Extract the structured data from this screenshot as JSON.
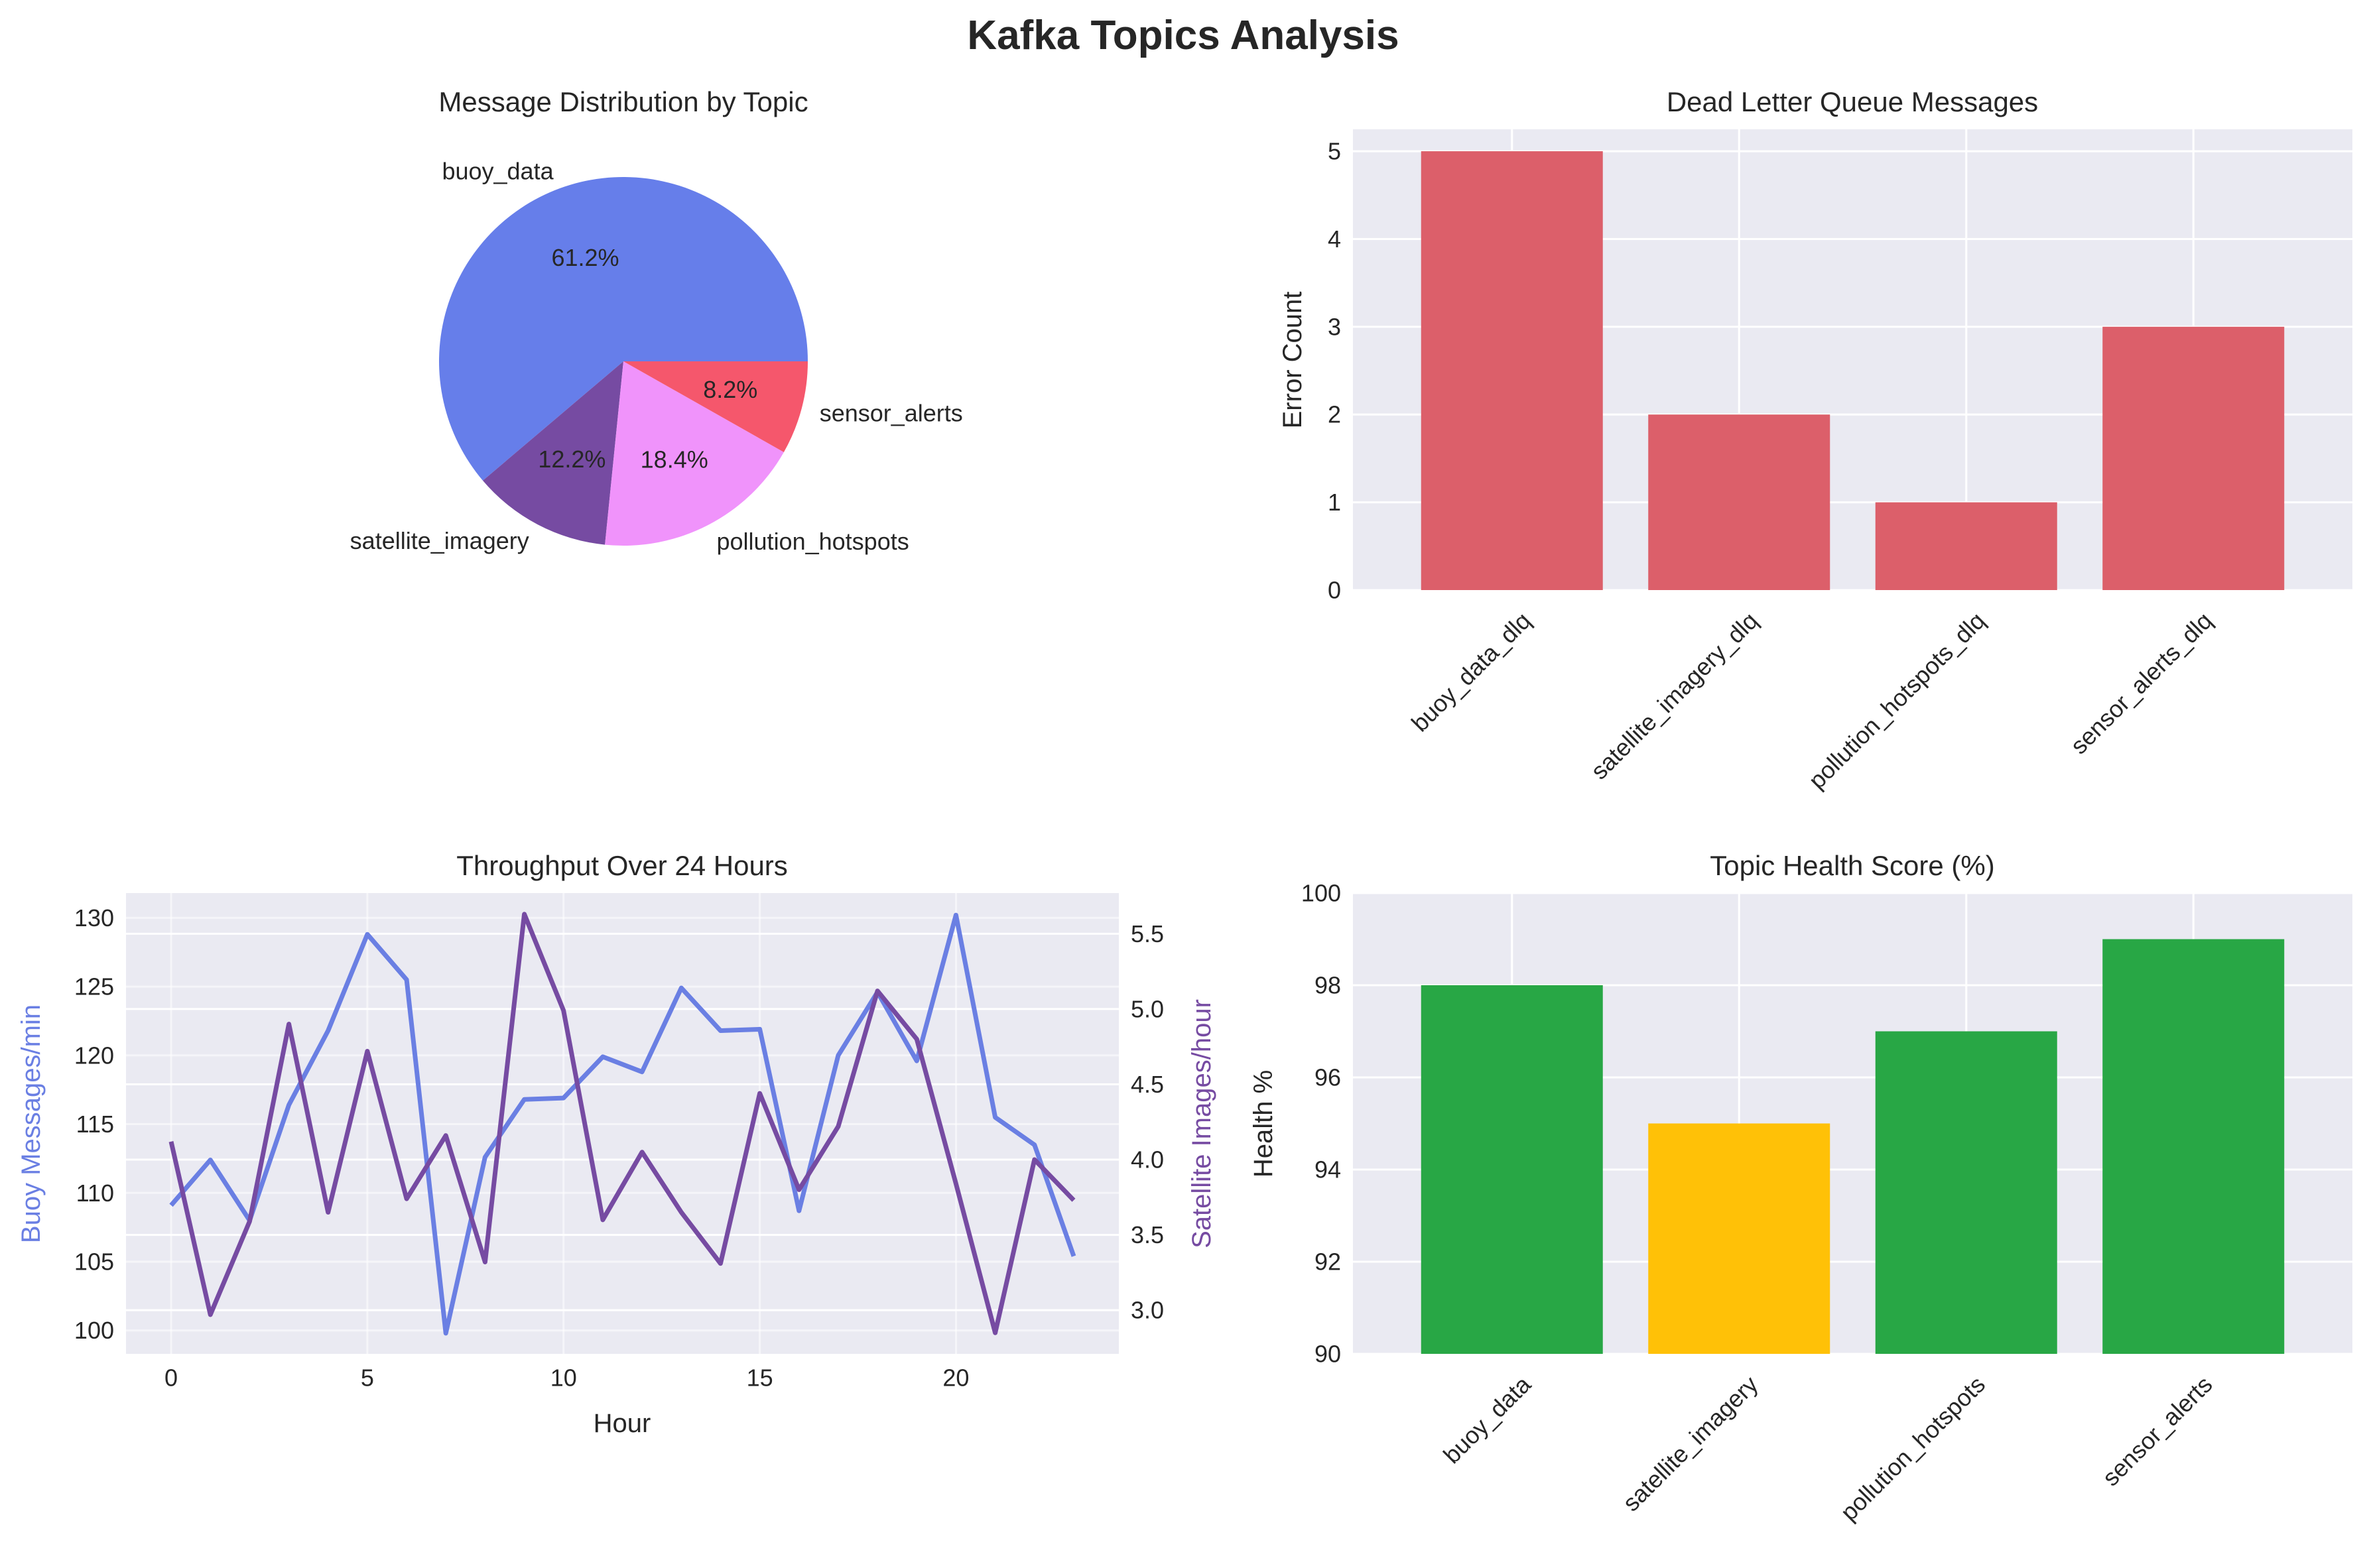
{
  "figure": {
    "title": "Kafka Topics Analysis"
  },
  "colors": {
    "buoy_line": "#6a7fe3",
    "satellite_line": "#764ba2",
    "dlq_bar": "#dc5f6a",
    "health_good": "#28a745",
    "health_warn": "#ffc107",
    "plot_bg": "#eaeaf2",
    "grid": "#ffffff"
  },
  "chart_data": [
    {
      "type": "pie",
      "title": "Message Distribution by Topic",
      "labels": [
        "buoy_data",
        "satellite_imagery",
        "pollution_hotspots",
        "sensor_alerts"
      ],
      "values": [
        61.2,
        12.2,
        18.4,
        8.2
      ],
      "pct_labels": [
        "61.2%",
        "12.2%",
        "18.4%",
        "8.2%"
      ],
      "colors": [
        "#667eea",
        "#764ba2",
        "#f093fb",
        "#f5576c"
      ],
      "start_angle": 0
    },
    {
      "type": "bar",
      "title": "Dead Letter Queue Messages",
      "categories": [
        "buoy_data_dlq",
        "satellite_imagery_dlq",
        "pollution_hotspots_dlq",
        "sensor_alerts_dlq"
      ],
      "values": [
        5,
        2,
        1,
        3
      ],
      "xlabel": "",
      "ylabel": "Error Count",
      "ylim": [
        0,
        5.25
      ],
      "yticks": [
        0,
        1,
        2,
        3,
        4,
        5
      ],
      "grid": true
    },
    {
      "type": "line",
      "title": "Throughput Over 24 Hours",
      "xlabel": "Hour",
      "x": [
        0,
        1,
        2,
        3,
        4,
        5,
        6,
        7,
        8,
        9,
        10,
        11,
        12,
        13,
        14,
        15,
        16,
        17,
        18,
        19,
        20,
        21,
        22,
        23
      ],
      "xlim": [
        -1.15,
        24.15
      ],
      "xticks": [
        0,
        5,
        10,
        15,
        20
      ],
      "series": [
        {
          "name": "Buoy Messages/min",
          "axis": "left",
          "values": [
            109.1,
            112.4,
            108.0,
            116.4,
            121.8,
            128.8,
            125.5,
            99.8,
            112.6,
            116.8,
            116.9,
            119.9,
            118.8,
            124.9,
            121.8,
            121.9,
            108.7,
            120.0,
            124.6,
            119.6,
            130.2,
            115.5,
            113.5,
            105.4
          ],
          "ylim": [
            98.3,
            131.8
          ],
          "yticks": [
            100,
            105,
            110,
            115,
            120,
            125,
            130
          ],
          "ylabel": "Buoy Messages/min"
        },
        {
          "name": "Satellite Images/hour",
          "axis": "right",
          "values": [
            4.12,
            2.97,
            3.59,
            4.9,
            3.65,
            4.72,
            3.74,
            4.16,
            3.32,
            5.63,
            4.99,
            3.6,
            4.05,
            3.65,
            3.31,
            4.44,
            3.8,
            4.22,
            5.12,
            4.8,
            3.84,
            2.85,
            4.0,
            3.73
          ],
          "ylim": [
            2.71,
            5.77
          ],
          "yticks": [
            3.0,
            3.5,
            4.0,
            4.5,
            5.0,
            5.5
          ],
          "ytick_labels": [
            "3.0",
            "3.5",
            "4.0",
            "4.5",
            "5.0",
            "5.5"
          ],
          "ylabel": "Satellite Images/hour"
        }
      ],
      "grid": true
    },
    {
      "type": "bar",
      "title": "Topic Health Score (%)",
      "categories": [
        "buoy_data",
        "satellite_imagery",
        "pollution_hotspots",
        "sensor_alerts"
      ],
      "values": [
        98,
        95,
        97,
        99
      ],
      "bar_colors": [
        "#28a745",
        "#ffc107",
        "#28a745",
        "#28a745"
      ],
      "xlabel": "",
      "ylabel": "Health %",
      "ylim": [
        90,
        100
      ],
      "yticks": [
        90,
        92,
        94,
        96,
        98,
        100
      ],
      "grid": true
    }
  ]
}
